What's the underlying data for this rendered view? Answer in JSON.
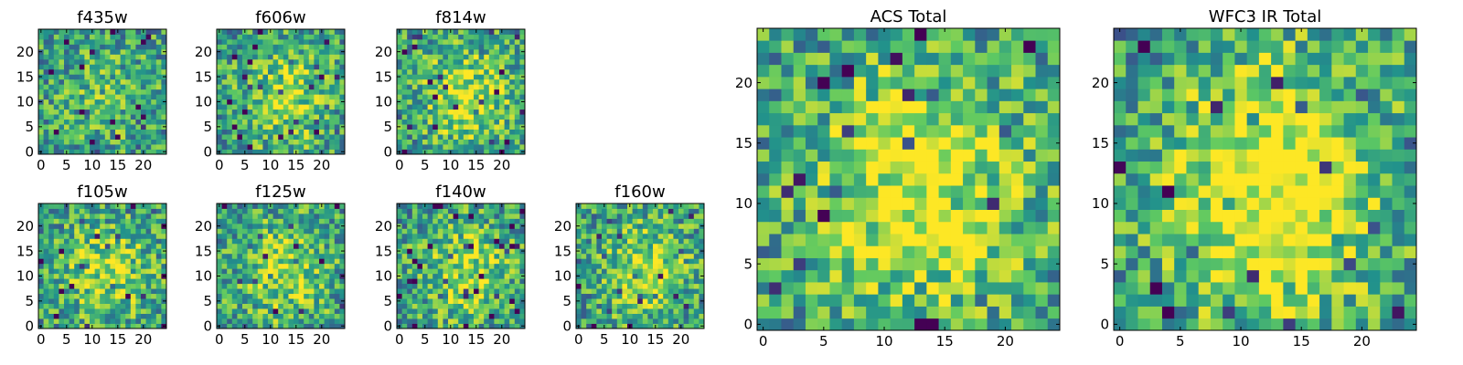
{
  "figure": {
    "description_free": true
  },
  "colormap": [
    "#440154",
    "#3b528b",
    "#21918c",
    "#5ec962",
    "#fde725"
  ],
  "chart_data": [
    {
      "type": "heatmap",
      "title": "f435w",
      "xlim": [
        0,
        24
      ],
      "ylim": [
        0,
        24
      ],
      "xticks": [
        "0",
        "5",
        "10",
        "15",
        "20"
      ],
      "yticks": [
        "0",
        "5",
        "10",
        "15",
        "20"
      ],
      "seed": 11,
      "blob": 0.15
    },
    {
      "type": "heatmap",
      "title": "f606w",
      "xlim": [
        0,
        24
      ],
      "ylim": [
        0,
        24
      ],
      "xticks": [
        "0",
        "5",
        "10",
        "15",
        "20"
      ],
      "yticks": [
        "0",
        "5",
        "10",
        "15",
        "20"
      ],
      "seed": 23,
      "blob": 0.3
    },
    {
      "type": "heatmap",
      "title": "f814w",
      "xlim": [
        0,
        24
      ],
      "ylim": [
        0,
        24
      ],
      "xticks": [
        "0",
        "5",
        "10",
        "15",
        "20"
      ],
      "yticks": [
        "0",
        "5",
        "10",
        "15",
        "20"
      ],
      "seed": 37,
      "blob": 0.35
    },
    {
      "type": "heatmap",
      "title": "f105w",
      "xlim": [
        0,
        24
      ],
      "ylim": [
        0,
        24
      ],
      "xticks": [
        "0",
        "5",
        "10",
        "15",
        "20"
      ],
      "yticks": [
        "0",
        "5",
        "10",
        "15",
        "20"
      ],
      "seed": 41,
      "blob": 0.3
    },
    {
      "type": "heatmap",
      "title": "f125w",
      "xlim": [
        0,
        24
      ],
      "ylim": [
        0,
        24
      ],
      "xticks": [
        "0",
        "5",
        "10",
        "15",
        "20"
      ],
      "yticks": [
        "0",
        "5",
        "10",
        "15",
        "20"
      ],
      "seed": 53,
      "blob": 0.3
    },
    {
      "type": "heatmap",
      "title": "f140w",
      "xlim": [
        0,
        24
      ],
      "ylim": [
        0,
        24
      ],
      "xticks": [
        "0",
        "5",
        "10",
        "15",
        "20"
      ],
      "yticks": [
        "0",
        "5",
        "10",
        "15",
        "20"
      ],
      "seed": 67,
      "blob": 0.3
    },
    {
      "type": "heatmap",
      "title": "f160w",
      "xlim": [
        0,
        24
      ],
      "ylim": [
        0,
        24
      ],
      "xticks": [
        "0",
        "5",
        "10",
        "15",
        "20"
      ],
      "yticks": [
        "0",
        "5",
        "10",
        "15",
        "20"
      ],
      "seed": 79,
      "blob": 0.3
    },
    {
      "type": "heatmap",
      "title": "ACS Total",
      "xlim": [
        0,
        24
      ],
      "ylim": [
        0,
        24
      ],
      "xticks": [
        "0",
        "5",
        "10",
        "15",
        "20"
      ],
      "yticks": [
        "0",
        "5",
        "10",
        "15",
        "20"
      ],
      "seed": 97,
      "blob": 0.45
    },
    {
      "type": "heatmap",
      "title": "WFC3 IR Total",
      "xlim": [
        0,
        24
      ],
      "ylim": [
        0,
        24
      ],
      "xticks": [
        "0",
        "5",
        "10",
        "15",
        "20"
      ],
      "yticks": [
        "0",
        "5",
        "10",
        "15",
        "20"
      ],
      "seed": 131,
      "blob": 0.55
    }
  ]
}
